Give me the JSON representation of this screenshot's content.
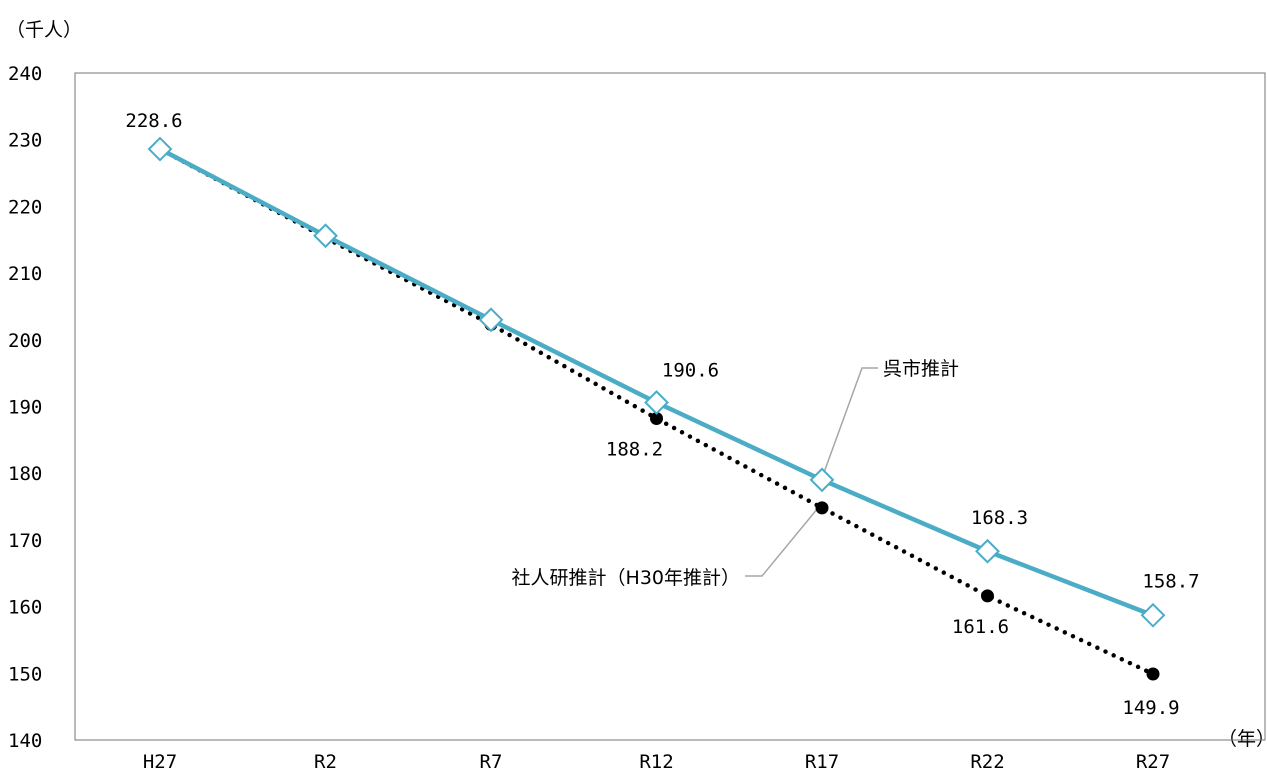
{
  "chart_data": {
    "type": "line",
    "y_unit_label": "（千人）",
    "x_unit_label": "（年）",
    "categories": [
      "H27",
      "R2",
      "R7",
      "R12",
      "R17",
      "R22",
      "R27"
    ],
    "ylim": [
      140,
      240
    ],
    "yticks": [
      140,
      150,
      160,
      170,
      180,
      190,
      200,
      210,
      220,
      230,
      240
    ],
    "grid": false,
    "series": [
      {
        "name": "呉市推計",
        "values": [
          228.6,
          215.6,
          203.0,
          190.6,
          179.0,
          168.3,
          158.7
        ],
        "color": "#4bacc6",
        "line_style": "solid",
        "marker": "open-diamond",
        "labeled_values": [
          {
            "index": 0,
            "text": "228.6"
          },
          {
            "index": 3,
            "text": "190.6"
          },
          {
            "index": 5,
            "text": "168.3"
          },
          {
            "index": 6,
            "text": "158.7"
          }
        ]
      },
      {
        "name": "社人研推計（H30年推計）",
        "values": [
          228.6,
          215.3,
          202.3,
          188.2,
          174.8,
          161.6,
          149.9
        ],
        "color": "#000000",
        "line_style": "dotted",
        "marker": "filled-circle",
        "labeled_values": [
          {
            "index": 3,
            "text": "188.2"
          },
          {
            "index": 5,
            "text": "161.6"
          },
          {
            "index": 6,
            "text": "149.9"
          }
        ]
      }
    ]
  }
}
